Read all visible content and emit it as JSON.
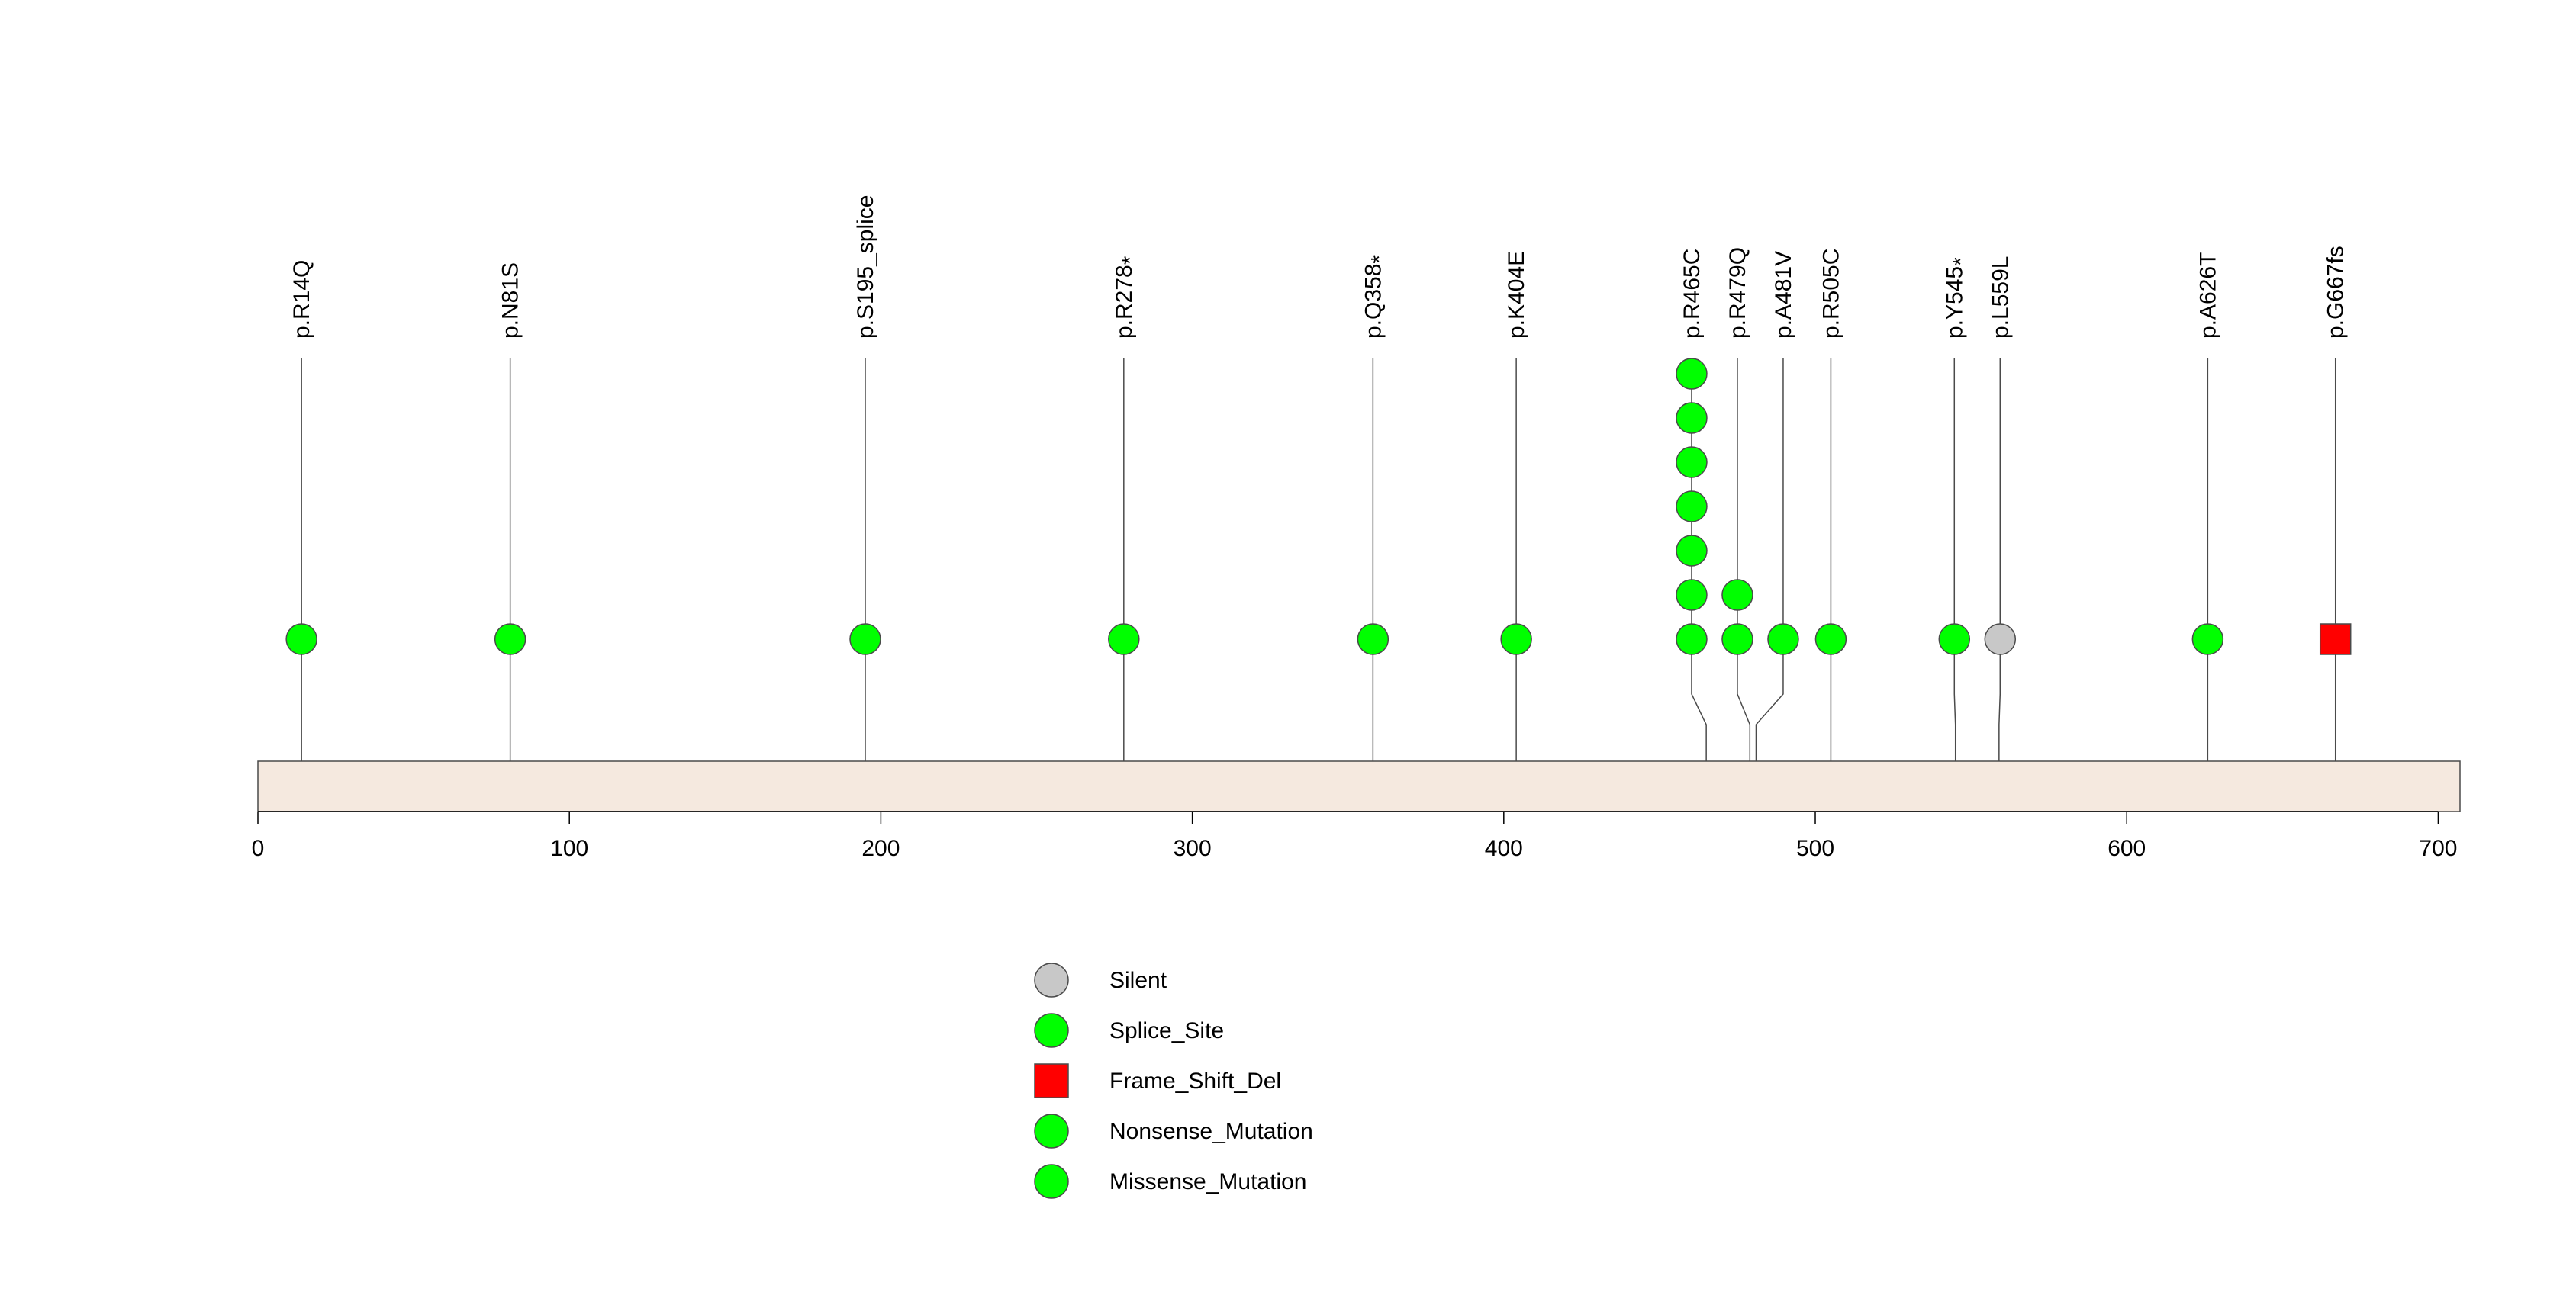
{
  "chart_data": {
    "type": "lollipop",
    "title": "",
    "xlabel": "",
    "ylabel": "",
    "xlim": [
      0,
      707
    ],
    "xticks": [
      0,
      100,
      200,
      300,
      400,
      500,
      600,
      700
    ],
    "protein_length": 707,
    "colors": {
      "Silent": "#c8c8c8",
      "Splice_Site": "#00ff00",
      "Frame_Shift_Del": "#ff0000",
      "Nonsense_Mutation": "#00ff00",
      "Missense_Mutation": "#00ff00",
      "protein_fill": "#f5e9df",
      "stroke": "#4a4a4a"
    },
    "mutations": [
      {
        "label": "p.R14Q",
        "position": 14,
        "count": 1,
        "type": "Missense_Mutation",
        "star": false,
        "shape": "circle"
      },
      {
        "label": "p.N81S",
        "position": 81,
        "count": 1,
        "type": "Missense_Mutation",
        "star": false,
        "shape": "circle"
      },
      {
        "label": "p.S195_splice",
        "position": 195,
        "count": 1,
        "type": "Splice_Site",
        "star": false,
        "shape": "circle"
      },
      {
        "label": "p.R278",
        "position": 278,
        "count": 1,
        "type": "Nonsense_Mutation",
        "star": true,
        "shape": "circle"
      },
      {
        "label": "p.Q358",
        "position": 358,
        "count": 1,
        "type": "Nonsense_Mutation",
        "star": true,
        "shape": "circle"
      },
      {
        "label": "p.K404E",
        "position": 404,
        "count": 1,
        "type": "Missense_Mutation",
        "star": false,
        "shape": "circle"
      },
      {
        "label": "p.R465C",
        "position": 465,
        "count": 7,
        "type": "Missense_Mutation",
        "star": false,
        "shape": "circle"
      },
      {
        "label": "p.R479Q",
        "position": 479,
        "count": 2,
        "type": "Missense_Mutation",
        "star": false,
        "shape": "circle"
      },
      {
        "label": "p.A481V",
        "position": 481,
        "count": 1,
        "type": "Missense_Mutation",
        "star": false,
        "shape": "circle"
      },
      {
        "label": "p.R505C",
        "position": 505,
        "count": 1,
        "type": "Missense_Mutation",
        "star": false,
        "shape": "circle"
      },
      {
        "label": "p.Y545",
        "position": 545,
        "count": 1,
        "type": "Nonsense_Mutation",
        "star": true,
        "shape": "circle"
      },
      {
        "label": "p.L559L",
        "position": 559,
        "count": 1,
        "type": "Silent",
        "star": false,
        "shape": "circle"
      },
      {
        "label": "p.A626T",
        "position": 626,
        "count": 1,
        "type": "Missense_Mutation",
        "star": false,
        "shape": "circle"
      },
      {
        "label": "p.G667fs",
        "position": 667,
        "count": 1,
        "type": "Frame_Shift_Del",
        "star": false,
        "shape": "square"
      }
    ],
    "legend": {
      "placement": "bottom-center",
      "entries": [
        {
          "label": "Silent",
          "shape": "circle",
          "color": "#c8c8c8"
        },
        {
          "label": "Splice_Site",
          "shape": "circle",
          "color": "#00ff00"
        },
        {
          "label": "Frame_Shift_Del",
          "shape": "square",
          "color": "#ff0000"
        },
        {
          "label": "Nonsense_Mutation",
          "shape": "circle",
          "color": "#00ff00"
        },
        {
          "label": "Missense_Mutation",
          "shape": "circle",
          "color": "#00ff00"
        }
      ]
    }
  }
}
